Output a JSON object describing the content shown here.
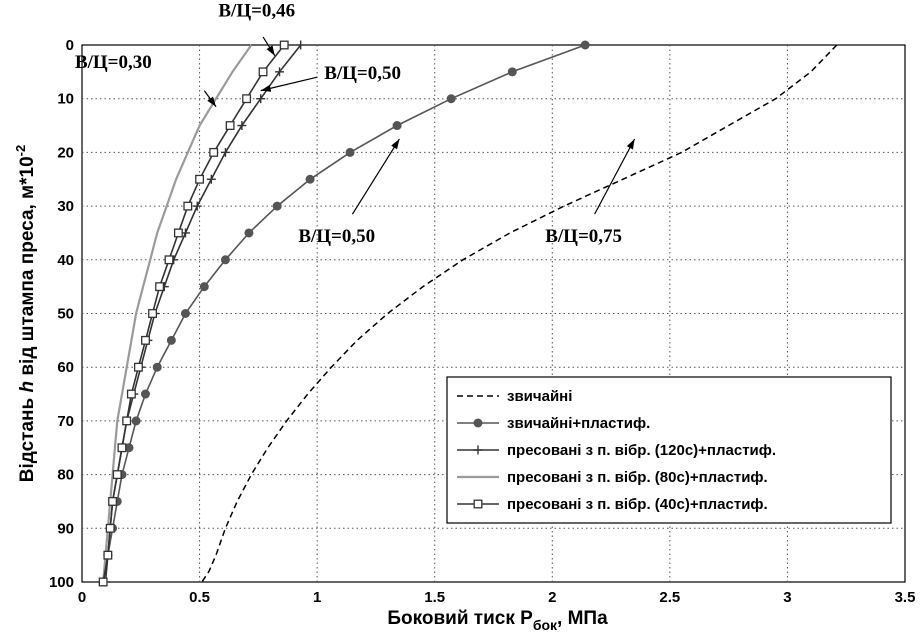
{
  "chart_data": {
    "type": "line",
    "title": "",
    "xlabel_main": "Боковий тиск Р",
    "xlabel_sub": "бок",
    "xlabel_tail": ", МПа",
    "ylabel_pre": "Відстань ",
    "ylabel_h": "h",
    "ylabel_mid": " від штампа преса, м*10",
    "ylabel_exp": "-2",
    "xlim": [
      0,
      3.5
    ],
    "ylim": [
      0,
      100
    ],
    "y_inverted": true,
    "grid": true,
    "legend_position": "bottom-right",
    "xticks": [
      "0",
      "0.5",
      "1",
      "1.5",
      "2",
      "2.5",
      "3",
      "3.5"
    ],
    "yticks": [
      "0",
      "10",
      "20",
      "30",
      "40",
      "50",
      "60",
      "70",
      "80",
      "90",
      "100"
    ],
    "series": [
      {
        "name": "звичайні",
        "style": "dashed",
        "marker": "none",
        "color": "#000000",
        "x": [
          3.21,
          3.1,
          2.95,
          2.75,
          2.55,
          2.3,
          2.05,
          1.82,
          1.62,
          1.45,
          1.3,
          1.17,
          1.06,
          0.96,
          0.87,
          0.79,
          0.72,
          0.66,
          0.61,
          0.57,
          0.54,
          0.51
        ],
        "y": [
          0,
          5,
          10,
          15,
          20,
          25,
          30,
          35,
          40,
          45,
          50,
          55,
          60,
          65,
          70,
          75,
          80,
          85,
          90,
          95,
          98,
          100
        ]
      },
      {
        "name": "звичайні+пластиф.",
        "style": "solid",
        "marker": "dot",
        "color": "#555555",
        "x": [
          2.14,
          1.83,
          1.57,
          1.34,
          1.14,
          0.97,
          0.83,
          0.71,
          0.61,
          0.52,
          0.44,
          0.38,
          0.32,
          0.27,
          0.23,
          0.2,
          0.17,
          0.15,
          0.13,
          0.11,
          0.09
        ],
        "y": [
          0,
          5,
          10,
          15,
          20,
          25,
          30,
          35,
          40,
          45,
          50,
          55,
          60,
          65,
          70,
          75,
          80,
          85,
          90,
          95,
          100
        ]
      },
      {
        "name": "пресовані з п. вібр. (120с)+пластиф.",
        "style": "solid",
        "marker": "plus",
        "color": "#333333",
        "x": [
          0.93,
          0.84,
          0.76,
          0.68,
          0.61,
          0.55,
          0.49,
          0.44,
          0.39,
          0.35,
          0.31,
          0.28,
          0.25,
          0.22,
          0.19,
          0.17,
          0.15,
          0.13,
          0.12,
          0.11,
          0.1
        ],
        "y": [
          0,
          5,
          10,
          15,
          20,
          25,
          30,
          35,
          40,
          45,
          50,
          55,
          60,
          65,
          70,
          75,
          80,
          85,
          90,
          95,
          100
        ]
      },
      {
        "name": "пресовані з п. вібр. (80с)+пластиф.",
        "style": "solid",
        "marker": "none",
        "color": "#9a9a9a",
        "x": [
          0.72,
          0.64,
          0.57,
          0.5,
          0.45,
          0.4,
          0.36,
          0.32,
          0.29,
          0.26,
          0.23,
          0.21,
          0.19,
          0.17,
          0.15,
          0.14,
          0.13,
          0.12,
          0.11,
          0.1,
          0.09
        ],
        "y": [
          0,
          5,
          10,
          15,
          20,
          25,
          30,
          35,
          40,
          45,
          50,
          55,
          60,
          65,
          70,
          75,
          80,
          85,
          90,
          95,
          100
        ]
      },
      {
        "name": "пресовані з п. вібр. (40с)+пластиф.",
        "style": "solid",
        "marker": "square",
        "color": "#333333",
        "x": [
          0.86,
          0.77,
          0.7,
          0.63,
          0.56,
          0.5,
          0.45,
          0.41,
          0.37,
          0.33,
          0.3,
          0.27,
          0.24,
          0.21,
          0.19,
          0.17,
          0.15,
          0.13,
          0.12,
          0.11,
          0.09
        ],
        "y": [
          0,
          5,
          10,
          15,
          20,
          25,
          30,
          35,
          40,
          45,
          50,
          55,
          60,
          65,
          70,
          75,
          80,
          85,
          90,
          95,
          100
        ]
      }
    ],
    "annotations": [
      {
        "text": "В/Ц=0,46",
        "text_x": 0.58,
        "text_y": -5.3,
        "arrow_to_x": 0.82,
        "arrow_to_y": 2.0,
        "arrow_from_x": 0.77,
        "arrow_from_y": -1.5
      },
      {
        "text": "В/Ц=0,30",
        "text_x": -0.03,
        "text_y": 4.3,
        "arrow_to_x": 0.57,
        "arrow_to_y": 11.5,
        "arrow_from_x": 0.52,
        "arrow_from_y": 8.5
      },
      {
        "text": "В/Ц=0,50",
        "text_x": 1.03,
        "text_y": 6.3,
        "arrow_to_x": 0.76,
        "arrow_to_y": 8.5,
        "arrow_from_x": 1.0,
        "arrow_from_y": 6.0
      },
      {
        "text": "В/Ц=0,50",
        "text_x": 0.92,
        "text_y": 36.7,
        "arrow_to_x": 1.35,
        "arrow_to_y": 17.5,
        "arrow_from_x": 1.15,
        "arrow_from_y": 31.5
      },
      {
        "text": "В/Ц=0,75",
        "text_x": 1.97,
        "text_y": 36.7,
        "arrow_to_x": 2.35,
        "arrow_to_y": 17.5,
        "arrow_from_x": 2.18,
        "arrow_from_y": 31.5
      }
    ]
  }
}
